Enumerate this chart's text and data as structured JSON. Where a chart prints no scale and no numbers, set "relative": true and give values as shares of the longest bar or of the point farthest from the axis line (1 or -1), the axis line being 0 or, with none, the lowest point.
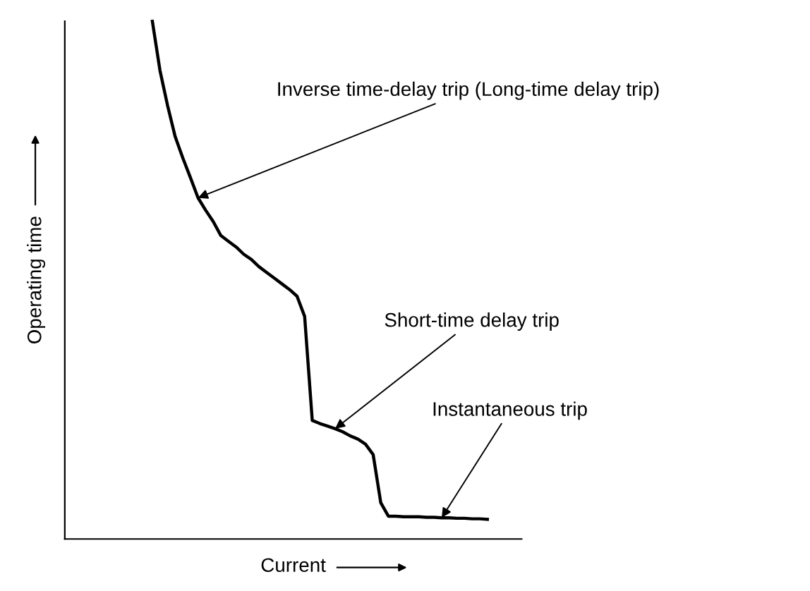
{
  "chart_data": {
    "type": "line",
    "relative": true,
    "xlabel": "Current",
    "ylabel": "Operating time",
    "categories": [
      null,
      null,
      null,
      null,
      null,
      null,
      null,
      null,
      null,
      null,
      null,
      null,
      null,
      null,
      null,
      null,
      null,
      null,
      null,
      null,
      null,
      null,
      null,
      null,
      null,
      null,
      null,
      null,
      null,
      null,
      null,
      null,
      null,
      null,
      null,
      null,
      null,
      null,
      null,
      null,
      null,
      null,
      null,
      null,
      null,
      null,
      null,
      null,
      null,
      null,
      null,
      null,
      null,
      null,
      null,
      null,
      null,
      null,
      null,
      null
    ],
    "series": [
      {
        "color": "#000000",
        "values": [
          null,
          null,
          null,
          null,
          null,
          null,
          null,
          null,
          null,
          null,
          null,
          1.0,
          0.905,
          0.837,
          0.777,
          0.736,
          0.698,
          0.659,
          0.635,
          0.613,
          0.586,
          0.575,
          0.564,
          0.55,
          0.54,
          0.526,
          0.515,
          0.504,
          0.493,
          0.482,
          0.469,
          0.43,
          0.229,
          0.223,
          0.218,
          0.213,
          0.207,
          0.199,
          0.193,
          0.183,
          0.163,
          0.07,
          0.044,
          0.044,
          0.043,
          0.043,
          0.043,
          0.042,
          0.042,
          0.041,
          0.041,
          0.04,
          0.04,
          0.039,
          0.039,
          0.038,
          null,
          null,
          null,
          null
        ]
      }
    ],
    "annotations": [
      "Inverse time-delay trip (Long-time delay trip)",
      "Short-time delay trip",
      "Instantaneous trip"
    ],
    "legend": false,
    "marker": "none",
    "line_style": "solid"
  }
}
